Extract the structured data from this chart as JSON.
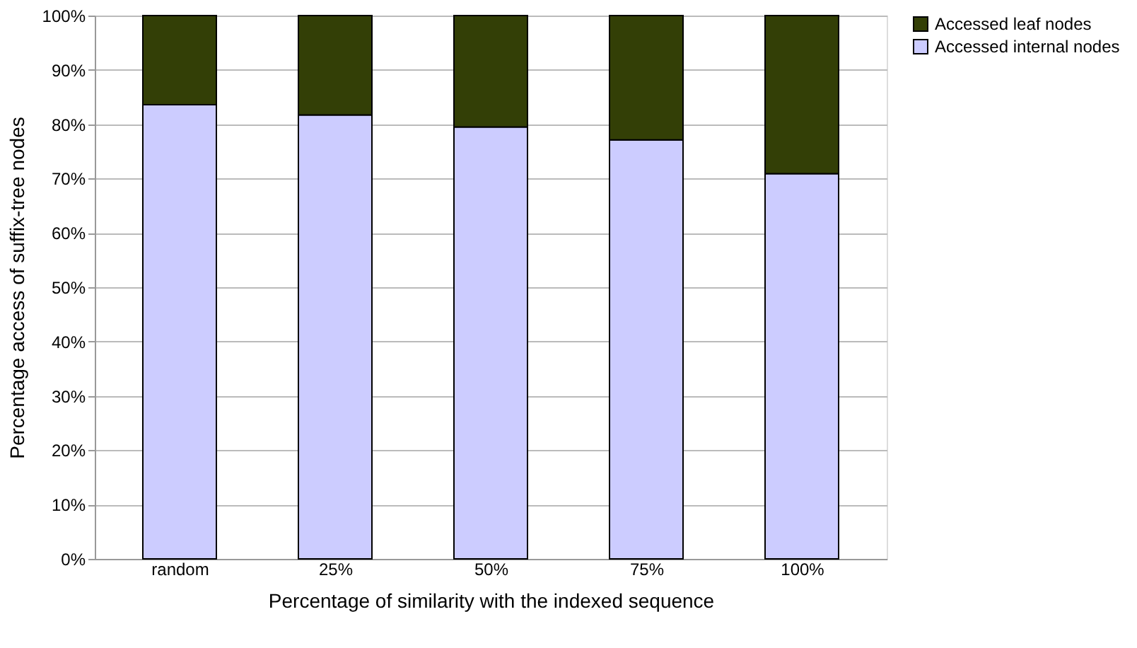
{
  "chart_data": {
    "type": "bar",
    "stacked": true,
    "xlabel": "Percentage of similarity with the indexed sequence",
    "ylabel": "Percentage access of suffix-tree nodes",
    "categories": [
      "random",
      "25%",
      "50%",
      "75%",
      "100%"
    ],
    "series": [
      {
        "name": "Accessed internal nodes",
        "color": "#ccccff",
        "values": [
          83.6,
          81.7,
          79.5,
          77.1,
          70.9
        ]
      },
      {
        "name": "Accessed leaf nodes",
        "color": "#333f06",
        "values": [
          16.4,
          18.3,
          20.5,
          22.9,
          29.1
        ]
      }
    ],
    "ylim": [
      0,
      100
    ],
    "yticks": [
      {
        "value": 0,
        "label": "0%"
      },
      {
        "value": 10,
        "label": "10%"
      },
      {
        "value": 20,
        "label": "20%"
      },
      {
        "value": 30,
        "label": "30%"
      },
      {
        "value": 40,
        "label": "40%"
      },
      {
        "value": 50,
        "label": "50%"
      },
      {
        "value": 60,
        "label": "60%"
      },
      {
        "value": 70,
        "label": "70%"
      },
      {
        "value": 80,
        "label": "80%"
      },
      {
        "value": 90,
        "label": "90%"
      },
      {
        "value": 100,
        "label": "100%"
      }
    ],
    "grid": "y",
    "legend": "right"
  }
}
